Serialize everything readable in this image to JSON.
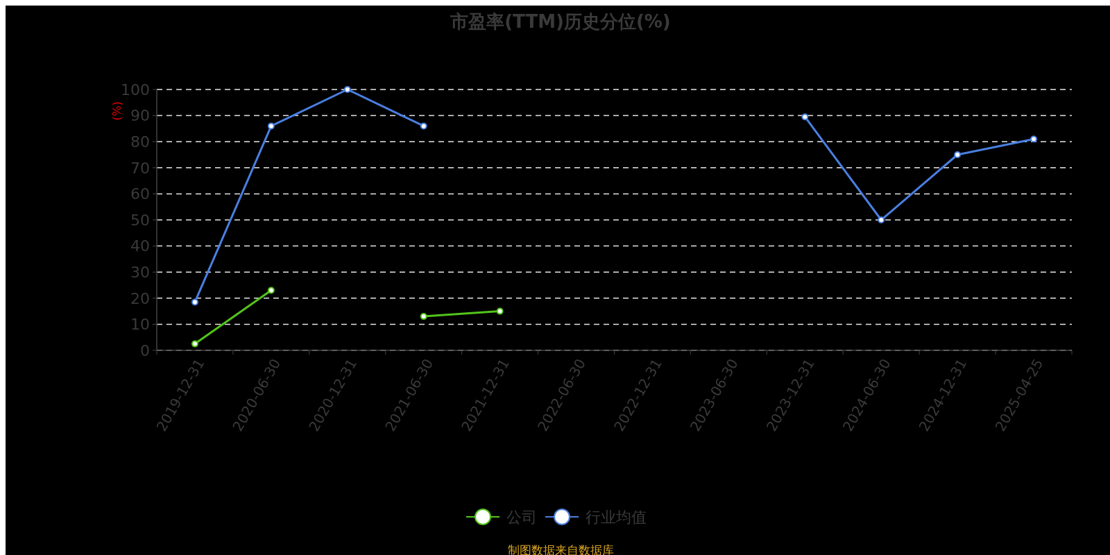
{
  "chart_data": {
    "type": "line",
    "title": "市盈率(TTM)历史分位(%)",
    "ylabel": "(%)",
    "categories": [
      "2019-12-31",
      "2020-06-30",
      "2020-12-31",
      "2021-06-30",
      "2021-12-31",
      "2022-06-30",
      "2022-12-31",
      "2023-06-30",
      "2023-12-31",
      "2024-06-30",
      "2024-12-31",
      "2025-04-25"
    ],
    "series": [
      {
        "name": "公司",
        "color": "#52c41a",
        "values": [
          2.5,
          23,
          null,
          13,
          15,
          null,
          null,
          null,
          null,
          null,
          null,
          null
        ]
      },
      {
        "name": "行业均值",
        "color": "#4a7fe0",
        "values": [
          18.5,
          86,
          100,
          86,
          null,
          null,
          null,
          null,
          89.5,
          50,
          75,
          81
        ]
      }
    ],
    "ylim": [
      0,
      100
    ],
    "yticks": [
      0,
      10,
      20,
      30,
      40,
      50,
      60,
      70,
      80,
      90,
      100
    ],
    "grid": "y",
    "legend": "bottom",
    "marker": "circle",
    "line_style": "solid",
    "annotations": [
      "制图数据来自数据库"
    ]
  }
}
